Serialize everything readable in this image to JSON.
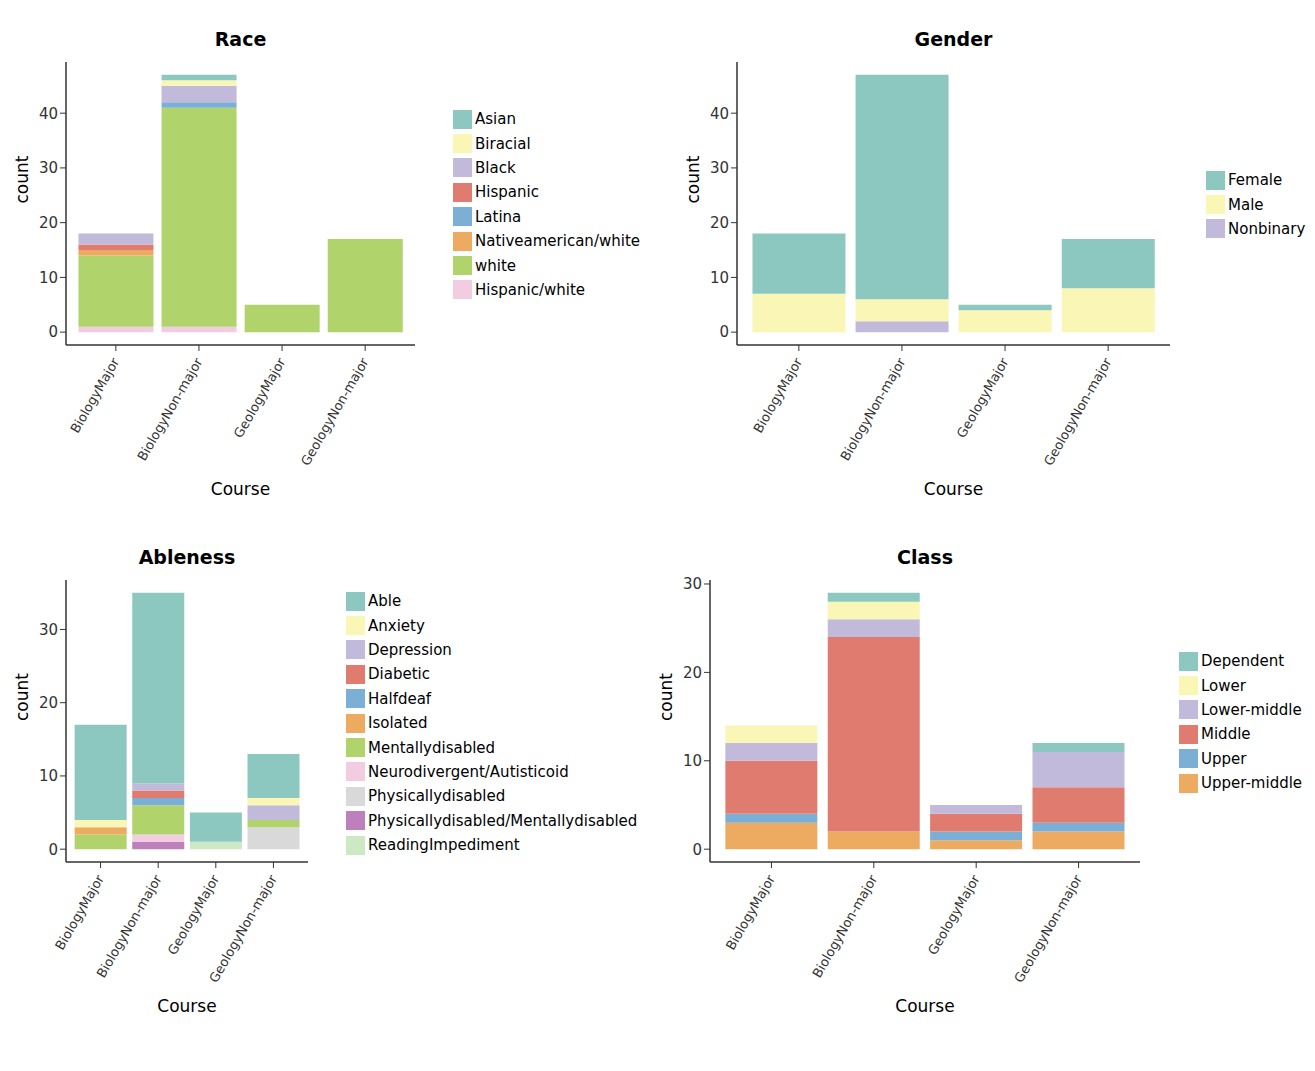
{
  "chart_data": [
    {
      "type": "bar",
      "stacked": true,
      "title": "Race",
      "x_label": "Course",
      "y_label": "count",
      "legend": "right",
      "categories": [
        "BiologyMajor",
        "BiologyNon-major",
        "GeologyMajor",
        "GeologyNon-major"
      ],
      "ylim": [
        -2.35,
        49.35
      ],
      "yticks": [
        0,
        10,
        20,
        30,
        40
      ],
      "series": [
        {
          "name": "Asian",
          "color": "#8CC8BF",
          "values": [
            0,
            1,
            0,
            0
          ]
        },
        {
          "name": "Biracial",
          "color": "#FAF6B6",
          "values": [
            0,
            1,
            0,
            0
          ]
        },
        {
          "name": "Black",
          "color": "#C1BADB",
          "values": [
            2,
            3,
            0,
            0
          ]
        },
        {
          "name": "Hispanic",
          "color": "#E07B70",
          "values": [
            1,
            0,
            0,
            0
          ]
        },
        {
          "name": "Latina",
          "color": "#7BAFD6",
          "values": [
            0,
            1,
            0,
            0
          ]
        },
        {
          "name": "Nativeamerican/white",
          "color": "#EDAB62",
          "values": [
            1,
            0,
            0,
            0
          ]
        },
        {
          "name": "white",
          "color": "#B0D36B",
          "values": [
            13,
            40,
            5,
            17
          ]
        },
        {
          "name": "Hispanic/white",
          "color": "#F2CCE0",
          "values": [
            1,
            1,
            0,
            0
          ]
        }
      ]
    },
    {
      "type": "bar",
      "stacked": true,
      "title": "Gender",
      "x_label": "Course",
      "y_label": "count",
      "legend": "right",
      "categories": [
        "BiologyMajor",
        "BiologyNon-major",
        "GeologyMajor",
        "GeologyNon-major"
      ],
      "ylim": [
        -2.35,
        49.35
      ],
      "yticks": [
        0,
        10,
        20,
        30,
        40
      ],
      "series": [
        {
          "name": "Female",
          "color": "#8CC8BF",
          "values": [
            11,
            41,
            1,
            9
          ]
        },
        {
          "name": "Male",
          "color": "#FAF6B6",
          "values": [
            7,
            4,
            4,
            8
          ]
        },
        {
          "name": "Nonbinary",
          "color": "#C1BADB",
          "values": [
            0,
            2,
            0,
            0
          ]
        }
      ]
    },
    {
      "type": "bar",
      "stacked": true,
      "title": "Ableness",
      "x_label": "Course",
      "y_label": "count",
      "legend": "right",
      "categories": [
        "BiologyMajor",
        "BiologyNon-major",
        "GeologyMajor",
        "GeologyNon-major"
      ],
      "ylim": [
        -1.75,
        36.75
      ],
      "yticks": [
        0,
        10,
        20,
        30
      ],
      "series": [
        {
          "name": "Able",
          "color": "#8CC8BF",
          "values": [
            13,
            26,
            4,
            6
          ]
        },
        {
          "name": "Anxiety",
          "color": "#FAF6B6",
          "values": [
            1,
            0,
            0,
            1
          ]
        },
        {
          "name": "Depression",
          "color": "#C1BADB",
          "values": [
            0,
            1,
            0,
            2
          ]
        },
        {
          "name": "Diabetic",
          "color": "#E07B70",
          "values": [
            0,
            1,
            0,
            0
          ]
        },
        {
          "name": "Halfdeaf",
          "color": "#7BAFD6",
          "values": [
            0,
            1,
            0,
            0
          ]
        },
        {
          "name": "Isolated",
          "color": "#EDAB62",
          "values": [
            1,
            0,
            0,
            0
          ]
        },
        {
          "name": "Mentallydisabled",
          "color": "#B0D36B",
          "values": [
            2,
            4,
            0,
            1
          ]
        },
        {
          "name": "Neurodivergent/Autisticoid",
          "color": "#F2CCE0",
          "values": [
            0,
            1,
            0,
            0
          ]
        },
        {
          "name": "Physicallydisabled",
          "color": "#D9D9D9",
          "values": [
            0,
            0,
            0,
            3
          ]
        },
        {
          "name": "Physicallydisabled/Mentallydisabled",
          "color": "#BC80BD",
          "values": [
            0,
            1,
            0,
            0
          ]
        },
        {
          "name": "ReadingImpediment",
          "color": "#CCE8C5",
          "values": [
            0,
            0,
            1,
            0
          ]
        }
      ]
    },
    {
      "type": "bar",
      "stacked": true,
      "title": "Class",
      "x_label": "Course",
      "y_label": "count",
      "legend": "right",
      "categories": [
        "BiologyMajor",
        "BiologyNon-major",
        "GeologyMajor",
        "GeologyNon-major"
      ],
      "ylim": [
        -1.45,
        30.45
      ],
      "yticks": [
        0,
        10,
        20,
        30
      ],
      "series": [
        {
          "name": "Dependent",
          "color": "#8CC8BF",
          "values": [
            0,
            1,
            0,
            1
          ]
        },
        {
          "name": "Lower",
          "color": "#FAF6B6",
          "values": [
            2,
            2,
            0,
            0
          ]
        },
        {
          "name": "Lower-middle",
          "color": "#C1BADB",
          "values": [
            2,
            2,
            1,
            4
          ]
        },
        {
          "name": "Middle",
          "color": "#E07B70",
          "values": [
            6,
            22,
            2,
            4
          ]
        },
        {
          "name": "Upper",
          "color": "#7BAFD6",
          "values": [
            1,
            0,
            1,
            1
          ]
        },
        {
          "name": "Upper-middle",
          "color": "#EDAB62",
          "values": [
            3,
            2,
            1,
            2
          ]
        }
      ]
    }
  ]
}
